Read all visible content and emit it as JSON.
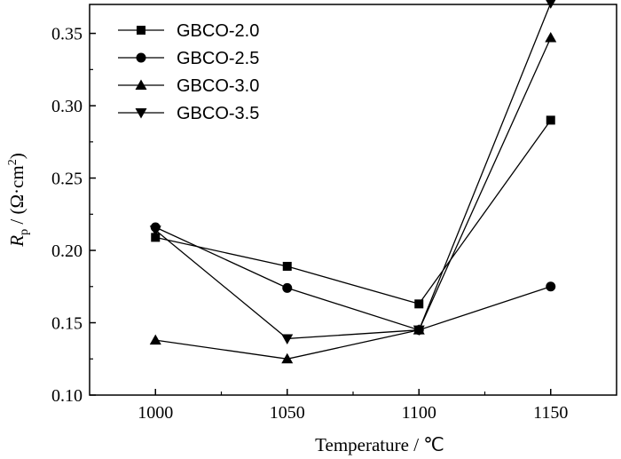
{
  "chart_data": {
    "type": "line",
    "xlabel": "Temperature / ℃",
    "ylabel": "Rp / (Ω·cm²)",
    "ylabel_parts": {
      "main": "R",
      "sub": "p",
      "mid": " / (Ω·cm",
      "sup": "2",
      "end": ")"
    },
    "xlim": [
      975,
      1175
    ],
    "ylim": [
      0.1,
      0.37
    ],
    "x": [
      1000,
      1050,
      1100,
      1150
    ],
    "xticks": [
      1000,
      1050,
      1100,
      1150
    ],
    "xtick_labels": [
      "1000",
      "1050",
      "1100",
      "1150"
    ],
    "yticks": [
      0.1,
      0.15,
      0.2,
      0.25,
      0.3,
      0.35
    ],
    "ytick_labels": [
      "0.10",
      "0.15",
      "0.20",
      "0.25",
      "0.30",
      "0.35"
    ],
    "grid": false,
    "legend_position": "top-left",
    "series": [
      {
        "name": "GBCO-2.0",
        "marker": "square",
        "values": [
          0.209,
          0.189,
          0.163,
          0.29
        ]
      },
      {
        "name": "GBCO-2.5",
        "marker": "circle",
        "values": [
          0.216,
          0.174,
          0.145,
          0.175
        ]
      },
      {
        "name": "GBCO-3.0",
        "marker": "triangle-up",
        "values": [
          0.138,
          0.125,
          0.145,
          0.347
        ]
      },
      {
        "name": "GBCO-3.5",
        "marker": "triangle-down",
        "values": [
          0.214,
          0.139,
          0.145,
          0.371
        ]
      }
    ],
    "colors": {
      "line": "#000000",
      "marker": "#000000"
    }
  }
}
